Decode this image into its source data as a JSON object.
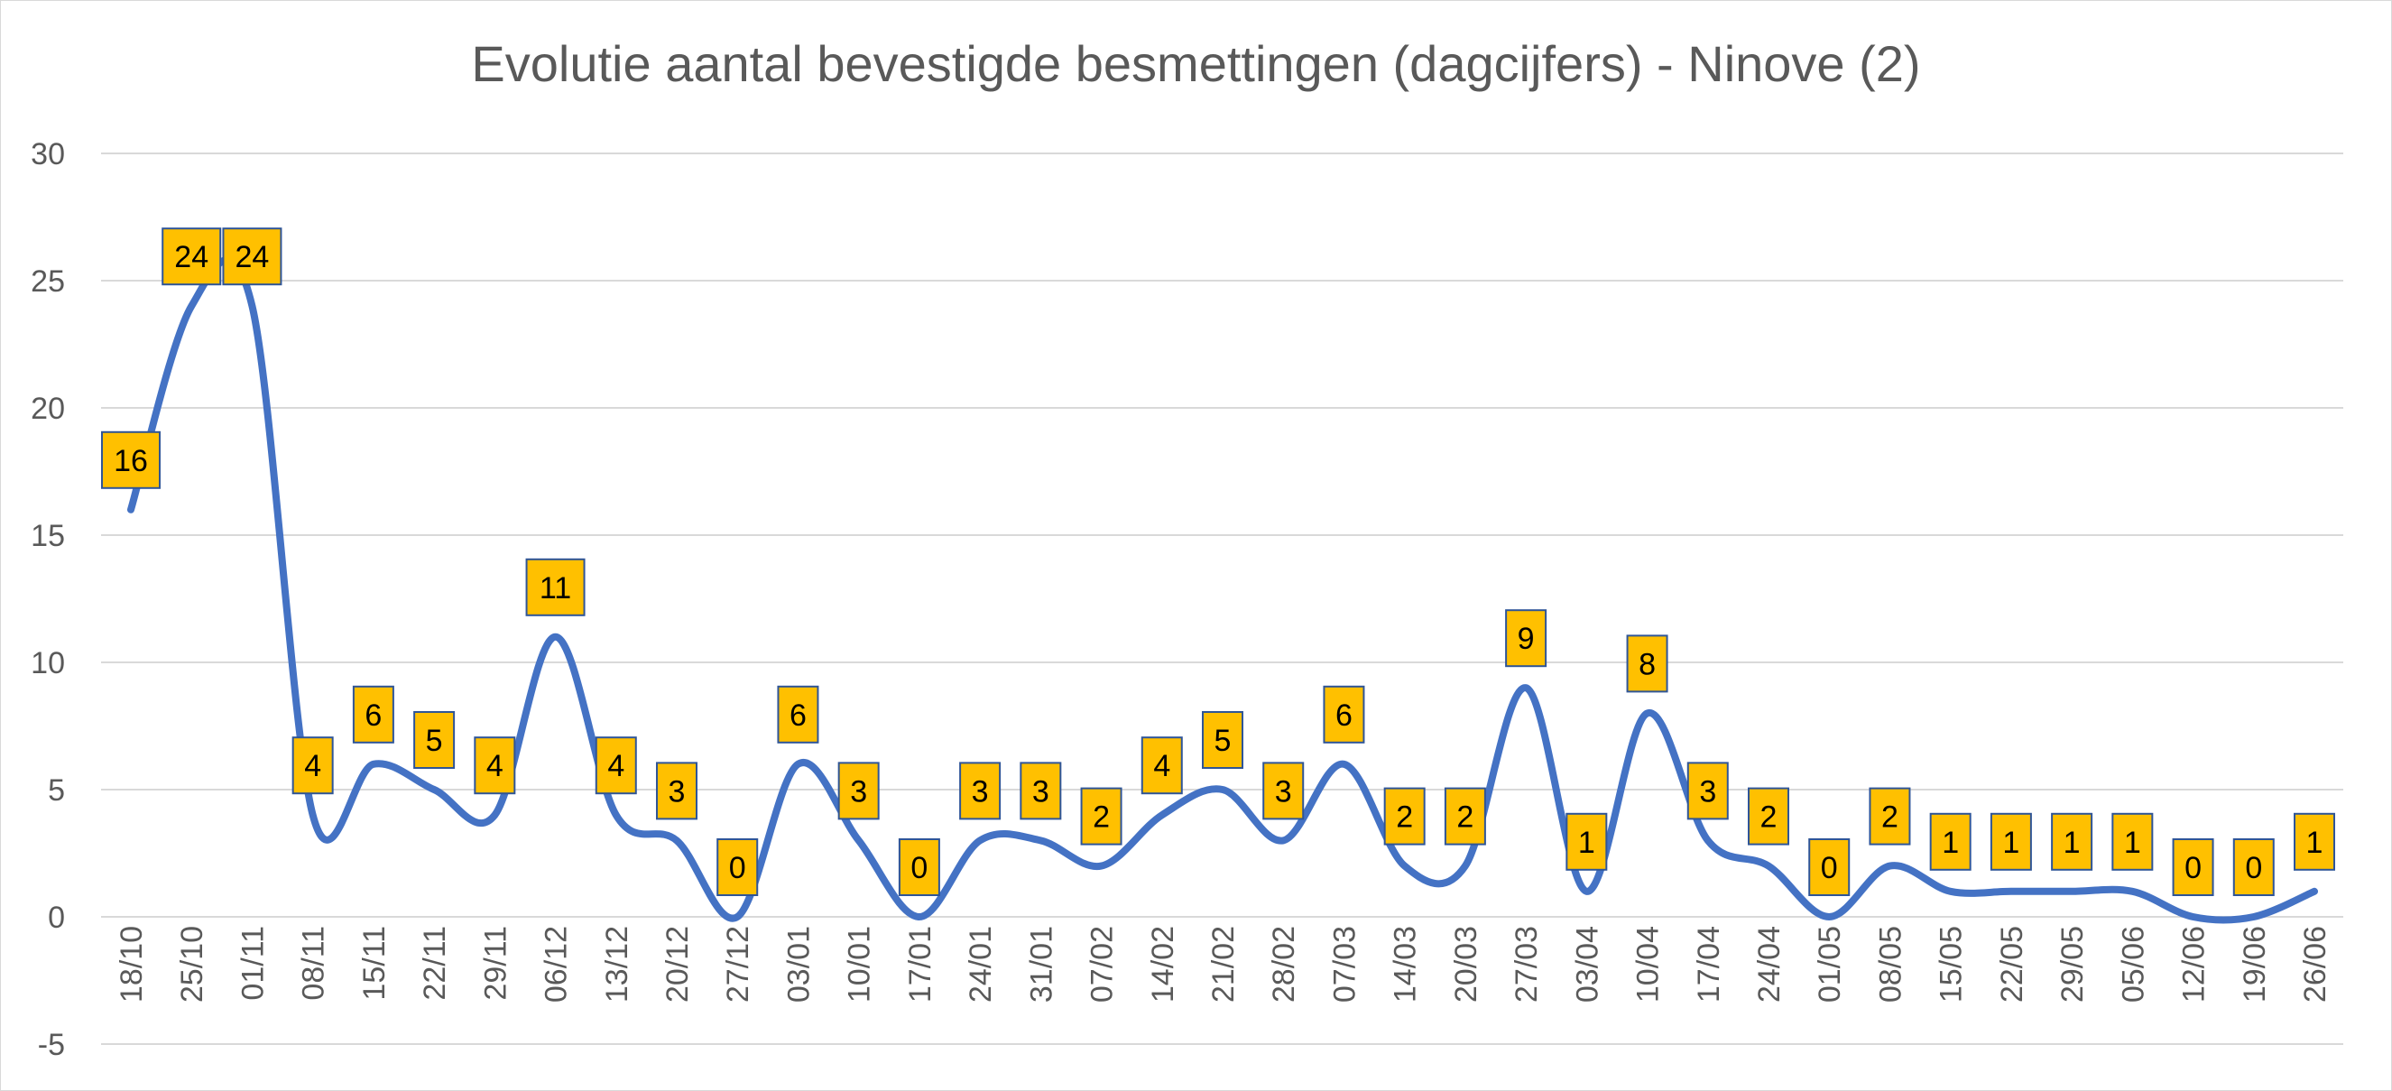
{
  "chart_data": {
    "type": "line",
    "title": "Evolutie aantal bevestigde besmettingen (dagcijfers) - Ninove (2)",
    "xlabel": "",
    "ylabel": "",
    "ylim": [
      -5,
      30
    ],
    "yticks": [
      "-5",
      "0",
      "5",
      "10",
      "15",
      "20",
      "25",
      "30"
    ],
    "grid": true,
    "smooth": true,
    "categories": [
      "18/10",
      "25/10",
      "01/11",
      "08/11",
      "15/11",
      "22/11",
      "29/11",
      "06/12",
      "13/12",
      "20/12",
      "27/12",
      "03/01",
      "10/01",
      "17/01",
      "24/01",
      "31/01",
      "07/02",
      "14/02",
      "21/02",
      "28/02",
      "07/03",
      "14/03",
      "20/03",
      "27/03",
      "03/04",
      "10/04",
      "17/04",
      "24/04",
      "01/05",
      "08/05",
      "15/05",
      "22/05",
      "29/05",
      "05/06",
      "12/06",
      "19/06",
      "26/06"
    ],
    "series": [
      {
        "name": "Ninove",
        "color": "#4472c4",
        "label_bg": "#ffc000",
        "label_border": "#2f5597",
        "values": [
          16,
          24,
          24,
          4,
          6,
          5,
          4,
          11,
          4,
          3,
          0,
          6,
          3,
          0,
          3,
          3,
          2,
          4,
          5,
          3,
          6,
          2,
          2,
          9,
          1,
          8,
          3,
          2,
          0,
          2,
          1,
          1,
          1,
          1,
          0,
          0,
          1
        ]
      }
    ]
  }
}
